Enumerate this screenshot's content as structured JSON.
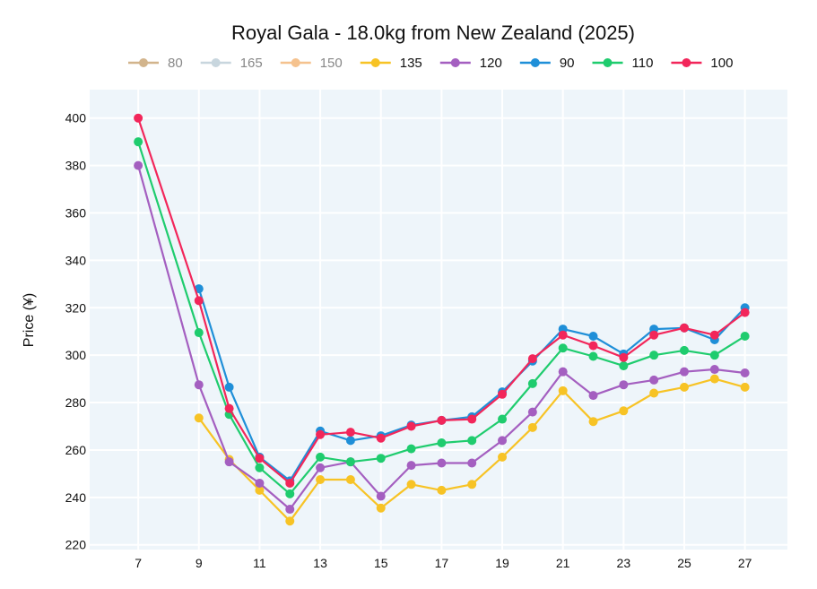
{
  "chart_data": {
    "type": "line",
    "title": "Royal Gala - 18.0kg from New Zealand (2025)",
    "xlabel": "",
    "ylabel": "Price (¥)",
    "xlim": [
      5.4,
      28.4
    ],
    "ylim": [
      218,
      412
    ],
    "xticks": [
      7,
      9,
      11,
      13,
      15,
      17,
      19,
      21,
      23,
      25,
      27
    ],
    "yticks": [
      220,
      240,
      260,
      280,
      300,
      320,
      340,
      360,
      380,
      400
    ],
    "grid": true,
    "legend_position": "top",
    "plot_background": "#eef5fa",
    "series": [
      {
        "name": "80",
        "color": "#d2b48c",
        "legend_muted": true,
        "x": [],
        "values": []
      },
      {
        "name": "165",
        "color": "#c8d6de",
        "legend_muted": true,
        "x": [],
        "values": []
      },
      {
        "name": "150",
        "color": "#f5c28e",
        "legend_muted": true,
        "x": [],
        "values": []
      },
      {
        "name": "135",
        "color": "#f7c325",
        "legend_muted": false,
        "x": [
          9,
          10,
          11,
          12,
          13,
          14,
          15,
          16,
          17,
          18,
          19,
          20,
          21,
          22,
          23,
          24,
          25,
          26,
          27
        ],
        "values": [
          273.5,
          256,
          243,
          230,
          247.5,
          247.5,
          235.5,
          245.5,
          243,
          245.5,
          257,
          269.5,
          285,
          272,
          276.5,
          284,
          286.5,
          290,
          286.5
        ]
      },
      {
        "name": "120",
        "color": "#a45fc0",
        "legend_muted": false,
        "x": [
          7,
          9,
          10,
          11,
          12,
          13,
          14,
          15,
          16,
          17,
          18,
          19,
          20,
          21,
          22,
          23,
          24,
          25,
          26,
          27
        ],
        "values": [
          380,
          287.5,
          255,
          246,
          235,
          252.5,
          255,
          240.5,
          253.5,
          254.5,
          254.5,
          264,
          276,
          293,
          283,
          287.5,
          289.5,
          293,
          294,
          292.5
        ]
      },
      {
        "name": "90",
        "color": "#1f8fd8",
        "legend_muted": false,
        "x": [
          9,
          10,
          11,
          12,
          13,
          14,
          15,
          16,
          17,
          18,
          19,
          20,
          21,
          22,
          23,
          24,
          25,
          26,
          27
        ],
        "values": [
          328,
          286.5,
          257,
          247,
          268,
          264,
          266,
          270.5,
          272.5,
          274,
          284.5,
          297.5,
          311,
          308,
          300.5,
          311,
          311.5,
          306.5,
          320
        ]
      },
      {
        "name": "110",
        "color": "#1fcc6e",
        "legend_muted": false,
        "x": [
          7,
          9,
          10,
          11,
          12,
          13,
          14,
          15,
          16,
          17,
          18,
          19,
          20,
          21,
          22,
          23,
          24,
          25,
          26,
          27
        ],
        "values": [
          390,
          309.5,
          275,
          252.5,
          241.5,
          257,
          255,
          256.5,
          260.5,
          263,
          264,
          273,
          288,
          303,
          299.5,
          295.5,
          300,
          302,
          300,
          308
        ]
      },
      {
        "name": "100",
        "color": "#f2265a",
        "legend_muted": false,
        "x": [
          7,
          9,
          10,
          11,
          12,
          13,
          14,
          15,
          16,
          17,
          18,
          19,
          20,
          21,
          22,
          23,
          24,
          25,
          26,
          27
        ],
        "values": [
          400,
          323,
          277.5,
          256.5,
          246,
          266.5,
          267.5,
          265,
          270,
          272.5,
          273,
          283.5,
          298.5,
          308.5,
          304,
          299,
          308.5,
          311.5,
          308.5,
          318
        ]
      }
    ]
  }
}
